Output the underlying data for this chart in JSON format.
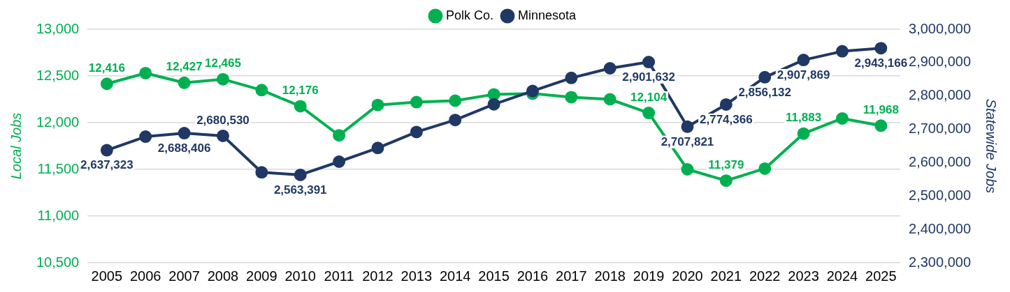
{
  "chart_data": {
    "type": "line",
    "ylabel": "Local Jobs",
    "y2label": "Statewide Jobs",
    "categories": [
      "2005",
      "2006",
      "2007",
      "2008",
      "2009",
      "2010",
      "2011",
      "2012",
      "2013",
      "2014",
      "2015",
      "2016",
      "2017",
      "2018",
      "2019",
      "2020",
      "2021",
      "2022",
      "2023",
      "2024",
      "2025"
    ],
    "series": [
      {
        "name": "Polk Co.",
        "color": "#00b050",
        "axis": "y",
        "values": [
          12416,
          12530,
          12427,
          12465,
          12348,
          12176,
          11864,
          12189,
          12220,
          12235,
          12303,
          12311,
          12273,
          12250,
          12104,
          11500,
          11379,
          11508,
          11883,
          12045,
          11968
        ],
        "value_labels": [
          "12,416",
          null,
          "12,427",
          "12,465",
          null,
          "12,176",
          null,
          null,
          null,
          null,
          null,
          null,
          null,
          null,
          "12,104",
          null,
          "11,379",
          null,
          "11,883",
          null,
          "11,968"
        ]
      },
      {
        "name": "Minnesota",
        "color": "#203864",
        "axis": "y2",
        "values": [
          2637323,
          2678000,
          2688406,
          2680530,
          2571000,
          2563391,
          2603000,
          2644000,
          2692000,
          2728000,
          2775000,
          2815000,
          2854000,
          2883000,
          2901632,
          2707821,
          2774366,
          2856132,
          2907869,
          2934000,
          2943166
        ],
        "value_labels": [
          "2,637,323",
          null,
          "2,688,406",
          "2,680,530",
          null,
          "2,563,391",
          null,
          null,
          null,
          null,
          null,
          null,
          null,
          null,
          "2,901,632",
          "2,707,821",
          "2,774,366",
          "2,856,132",
          "2,907,869",
          null,
          "2,943,166"
        ]
      }
    ],
    "ylim": [
      10500,
      13000
    ],
    "yticks": [
      {
        "value": 10500,
        "label": "10,500"
      },
      {
        "value": 11000,
        "label": "11,000"
      },
      {
        "value": 11500,
        "label": "11,500"
      },
      {
        "value": 12000,
        "label": "12,000"
      },
      {
        "value": 12500,
        "label": "12,500"
      },
      {
        "value": 13000,
        "label": "13,000"
      }
    ],
    "y2lim": [
      2300000,
      3000000
    ],
    "y2ticks": [
      {
        "value": 2300000,
        "label": "2,300,000"
      },
      {
        "value": 2400000,
        "label": "2,400,000"
      },
      {
        "value": 2500000,
        "label": "2,500,000"
      },
      {
        "value": 2600000,
        "label": "2,600,000"
      },
      {
        "value": 2700000,
        "label": "2,700,000"
      },
      {
        "value": 2800000,
        "label": "2,800,000"
      },
      {
        "value": 2900000,
        "label": "2,900,000"
      },
      {
        "value": 3000000,
        "label": "3,000,000"
      }
    ],
    "grid": "y",
    "legend": "top",
    "marker": "circle",
    "line_style": "solid"
  }
}
